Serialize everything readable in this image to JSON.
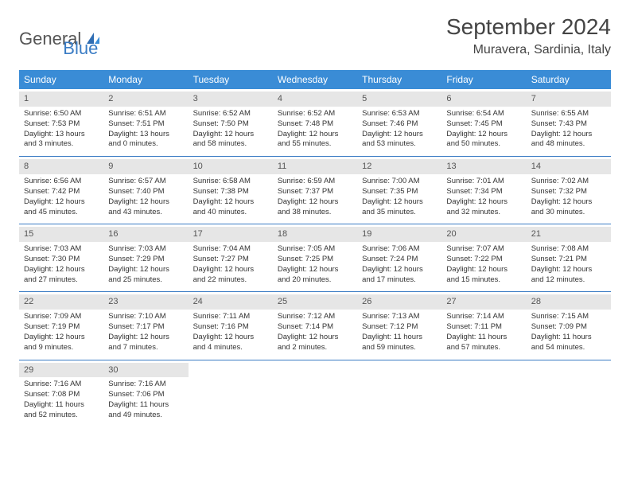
{
  "logo": {
    "part1": "General",
    "part2": "Blue"
  },
  "title": "September 2024",
  "location": "Muravera, Sardinia, Italy",
  "colors": {
    "header_bg": "#3a8cd6",
    "accent": "#3a7cc4",
    "daynum_bg": "#e6e6e6",
    "text": "#333333"
  },
  "weekdays": [
    "Sunday",
    "Monday",
    "Tuesday",
    "Wednesday",
    "Thursday",
    "Friday",
    "Saturday"
  ],
  "days": [
    {
      "n": 1,
      "sr": "6:50 AM",
      "ss": "7:53 PM",
      "dl": "13 hours and 3 minutes."
    },
    {
      "n": 2,
      "sr": "6:51 AM",
      "ss": "7:51 PM",
      "dl": "13 hours and 0 minutes."
    },
    {
      "n": 3,
      "sr": "6:52 AM",
      "ss": "7:50 PM",
      "dl": "12 hours and 58 minutes."
    },
    {
      "n": 4,
      "sr": "6:52 AM",
      "ss": "7:48 PM",
      "dl": "12 hours and 55 minutes."
    },
    {
      "n": 5,
      "sr": "6:53 AM",
      "ss": "7:46 PM",
      "dl": "12 hours and 53 minutes."
    },
    {
      "n": 6,
      "sr": "6:54 AM",
      "ss": "7:45 PM",
      "dl": "12 hours and 50 minutes."
    },
    {
      "n": 7,
      "sr": "6:55 AM",
      "ss": "7:43 PM",
      "dl": "12 hours and 48 minutes."
    },
    {
      "n": 8,
      "sr": "6:56 AM",
      "ss": "7:42 PM",
      "dl": "12 hours and 45 minutes."
    },
    {
      "n": 9,
      "sr": "6:57 AM",
      "ss": "7:40 PM",
      "dl": "12 hours and 43 minutes."
    },
    {
      "n": 10,
      "sr": "6:58 AM",
      "ss": "7:38 PM",
      "dl": "12 hours and 40 minutes."
    },
    {
      "n": 11,
      "sr": "6:59 AM",
      "ss": "7:37 PM",
      "dl": "12 hours and 38 minutes."
    },
    {
      "n": 12,
      "sr": "7:00 AM",
      "ss": "7:35 PM",
      "dl": "12 hours and 35 minutes."
    },
    {
      "n": 13,
      "sr": "7:01 AM",
      "ss": "7:34 PM",
      "dl": "12 hours and 32 minutes."
    },
    {
      "n": 14,
      "sr": "7:02 AM",
      "ss": "7:32 PM",
      "dl": "12 hours and 30 minutes."
    },
    {
      "n": 15,
      "sr": "7:03 AM",
      "ss": "7:30 PM",
      "dl": "12 hours and 27 minutes."
    },
    {
      "n": 16,
      "sr": "7:03 AM",
      "ss": "7:29 PM",
      "dl": "12 hours and 25 minutes."
    },
    {
      "n": 17,
      "sr": "7:04 AM",
      "ss": "7:27 PM",
      "dl": "12 hours and 22 minutes."
    },
    {
      "n": 18,
      "sr": "7:05 AM",
      "ss": "7:25 PM",
      "dl": "12 hours and 20 minutes."
    },
    {
      "n": 19,
      "sr": "7:06 AM",
      "ss": "7:24 PM",
      "dl": "12 hours and 17 minutes."
    },
    {
      "n": 20,
      "sr": "7:07 AM",
      "ss": "7:22 PM",
      "dl": "12 hours and 15 minutes."
    },
    {
      "n": 21,
      "sr": "7:08 AM",
      "ss": "7:21 PM",
      "dl": "12 hours and 12 minutes."
    },
    {
      "n": 22,
      "sr": "7:09 AM",
      "ss": "7:19 PM",
      "dl": "12 hours and 9 minutes."
    },
    {
      "n": 23,
      "sr": "7:10 AM",
      "ss": "7:17 PM",
      "dl": "12 hours and 7 minutes."
    },
    {
      "n": 24,
      "sr": "7:11 AM",
      "ss": "7:16 PM",
      "dl": "12 hours and 4 minutes."
    },
    {
      "n": 25,
      "sr": "7:12 AM",
      "ss": "7:14 PM",
      "dl": "12 hours and 2 minutes."
    },
    {
      "n": 26,
      "sr": "7:13 AM",
      "ss": "7:12 PM",
      "dl": "11 hours and 59 minutes."
    },
    {
      "n": 27,
      "sr": "7:14 AM",
      "ss": "7:11 PM",
      "dl": "11 hours and 57 minutes."
    },
    {
      "n": 28,
      "sr": "7:15 AM",
      "ss": "7:09 PM",
      "dl": "11 hours and 54 minutes."
    },
    {
      "n": 29,
      "sr": "7:16 AM",
      "ss": "7:08 PM",
      "dl": "11 hours and 52 minutes."
    },
    {
      "n": 30,
      "sr": "7:16 AM",
      "ss": "7:06 PM",
      "dl": "11 hours and 49 minutes."
    }
  ],
  "labels": {
    "sunrise": "Sunrise:",
    "sunset": "Sunset:",
    "daylight": "Daylight:"
  }
}
